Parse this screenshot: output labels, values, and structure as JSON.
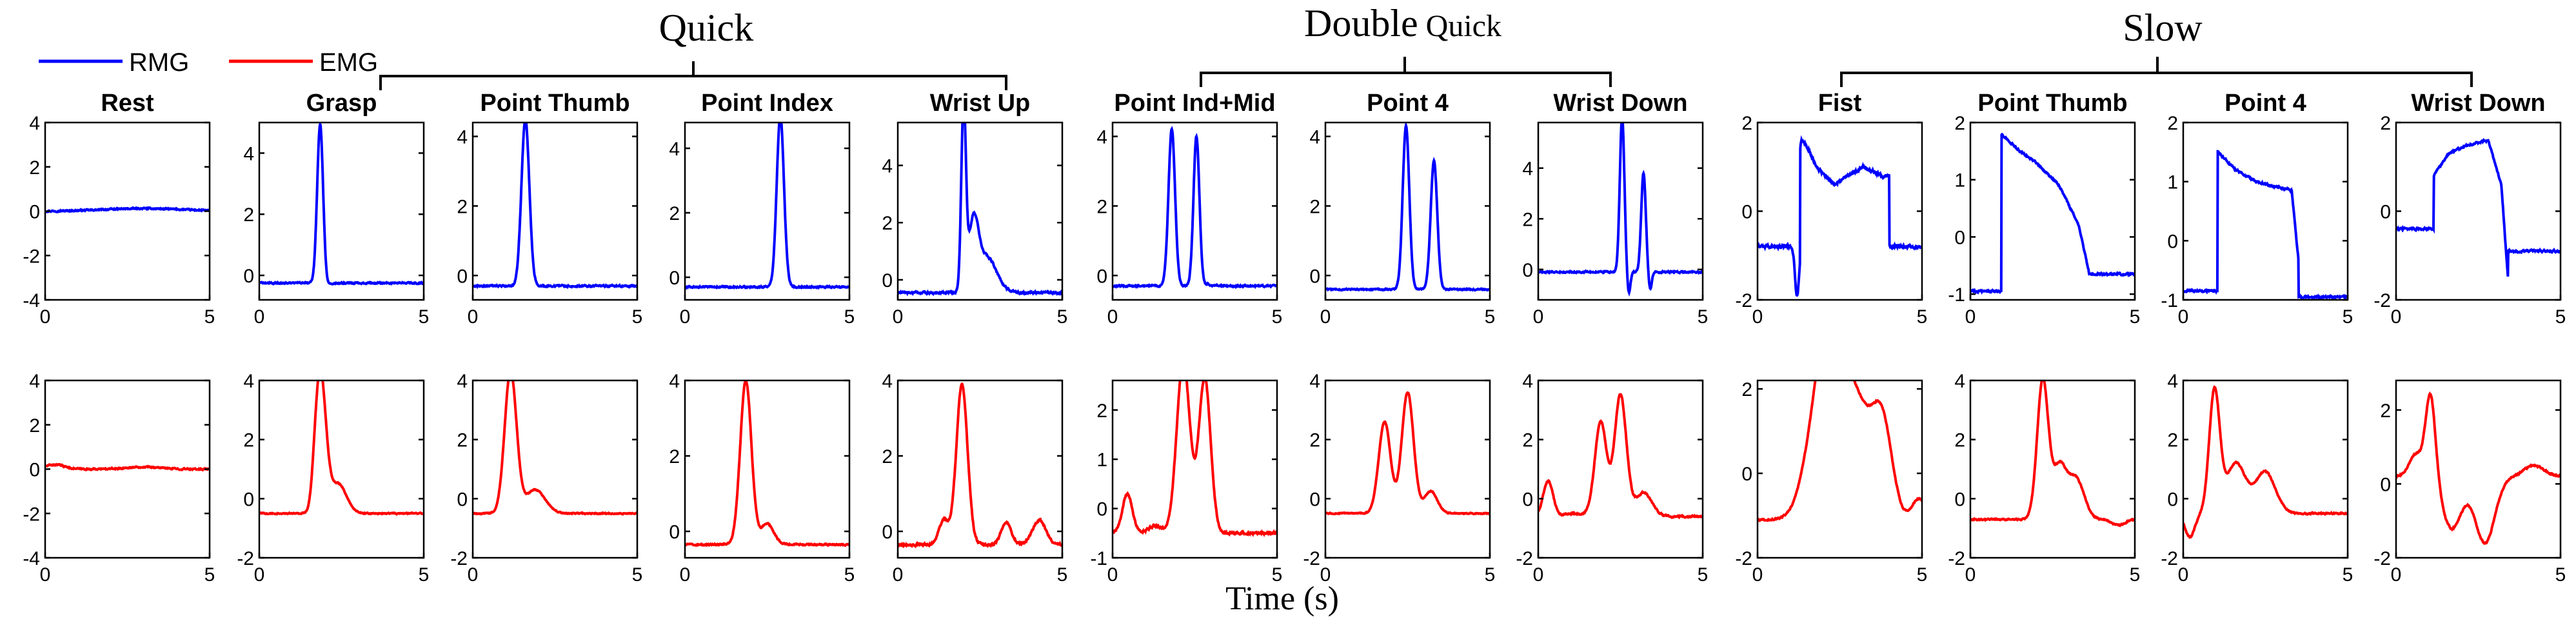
{
  "chart_data": {
    "type": "line",
    "xlabel": "Time (s)",
    "xlim": [
      0,
      5
    ],
    "xticks": [
      0,
      5
    ],
    "legend": {
      "placement": "top-left",
      "entries": [
        {
          "name": "RMG",
          "color": "#0000ff"
        },
        {
          "name": "EMG",
          "color": "#ff0000"
        }
      ]
    },
    "groups": [
      {
        "title": "Quick",
        "title_suffix": "",
        "panels": [
          "Grasp",
          "Point Thumb",
          "Point Index",
          "Wrist Up"
        ]
      },
      {
        "title": "Double",
        "title_suffix": "Quick",
        "panels": [
          "Point Ind+Mid",
          "Point 4",
          "Wrist Down"
        ]
      },
      {
        "title": "Slow",
        "title_suffix": "",
        "panels": [
          "Fist",
          "Point Thumb",
          "Point 4",
          "Wrist Down"
        ]
      }
    ],
    "panels": [
      {
        "title": "Rest",
        "rmg": {
          "ylim": [
            -4,
            4
          ],
          "yticks": [
            -4,
            -2,
            0,
            2,
            4
          ],
          "type": "flat",
          "base": 0.0,
          "noise": 0.05,
          "bumps": [
            [
              3.0,
              0.12,
              1.2
            ]
          ]
        },
        "emg": {
          "ylim": [
            -4,
            4
          ],
          "yticks": [
            -4,
            -2,
            0,
            2,
            4
          ],
          "type": "flat",
          "base": 0.0,
          "noise": 0.05,
          "bumps": [
            [
              0.3,
              0.2,
              0.3
            ],
            [
              3.0,
              0.1,
              0.5
            ]
          ]
        }
      },
      {
        "title": "Grasp",
        "rmg": {
          "ylim": [
            -0.8,
            5.0
          ],
          "yticks": [
            0,
            2,
            4
          ],
          "type": "peaks",
          "base": -0.25,
          "noise": 0.04,
          "peaks": [
            [
              1.85,
              4.95,
              0.09
            ]
          ],
          "dips": [
            [
              2.05,
              -0.35,
              0.06
            ]
          ]
        },
        "emg": {
          "ylim": [
            -2,
            4
          ],
          "yticks": [
            -2,
            0,
            2,
            4
          ],
          "type": "peaks",
          "base": -0.5,
          "noise": 0.03,
          "peaks": [
            [
              1.85,
              4.3,
              0.17
            ],
            [
              2.4,
              0.5,
              0.25
            ]
          ],
          "dips": [
            [
              1.55,
              -0.8,
              0.1
            ]
          ]
        }
      },
      {
        "title": "Point Thumb",
        "rmg": {
          "ylim": [
            -0.7,
            4.4
          ],
          "yticks": [
            0,
            2,
            4
          ],
          "type": "peaks",
          "base": -0.3,
          "noise": 0.04,
          "peaks": [
            [
              1.6,
              4.5,
              0.12
            ]
          ],
          "dips": []
        },
        "emg": {
          "ylim": [
            -2,
            4
          ],
          "yticks": [
            -2,
            0,
            2,
            4
          ],
          "type": "peaks",
          "base": -0.5,
          "noise": 0.03,
          "peaks": [
            [
              1.15,
              4.3,
              0.18
            ],
            [
              1.9,
              0.3,
              0.3
            ]
          ],
          "dips": []
        }
      },
      {
        "title": "Point Index",
        "rmg": {
          "ylim": [
            -0.7,
            4.8
          ],
          "yticks": [
            0,
            2,
            4
          ],
          "type": "peaks",
          "base": -0.3,
          "noise": 0.04,
          "peaks": [
            [
              2.9,
              5.0,
              0.11
            ]
          ],
          "dips": [
            [
              3.1,
              -0.25,
              0.06
            ]
          ]
        },
        "emg": {
          "ylim": [
            -0.7,
            4.0
          ],
          "yticks": [
            0,
            2,
            4
          ],
          "type": "peaks",
          "base": -0.35,
          "noise": 0.03,
          "peaks": [
            [
              1.85,
              4.0,
              0.17
            ],
            [
              2.5,
              0.2,
              0.2
            ]
          ],
          "dips": []
        }
      },
      {
        "title": "Wrist Up",
        "rmg": {
          "ylim": [
            -0.7,
            5.5
          ],
          "yticks": [
            0,
            2,
            4
          ],
          "type": "peaks",
          "base": -0.45,
          "noise": 0.06,
          "peaks": [
            [
              2.0,
              6.0,
              0.07
            ],
            [
              2.3,
              1.8,
              0.15
            ],
            [
              2.7,
              0.8,
              0.3
            ]
          ],
          "dips": []
        },
        "emg": {
          "ylim": [
            -0.7,
            4.0
          ],
          "yticks": [
            0,
            2,
            4
          ],
          "type": "peaks",
          "base": -0.35,
          "noise": 0.05,
          "peaks": [
            [
              1.95,
              3.9,
              0.17
            ],
            [
              1.4,
              0.3,
              0.15
            ],
            [
              3.3,
              0.25,
              0.15
            ],
            [
              4.3,
              0.3,
              0.2
            ]
          ],
          "dips": []
        }
      },
      {
        "title": "Point Ind+Mid",
        "rmg": {
          "ylim": [
            -0.7,
            4.4
          ],
          "yticks": [
            0,
            2,
            4
          ],
          "type": "peaks",
          "base": -0.3,
          "noise": 0.04,
          "peaks": [
            [
              1.8,
              4.2,
              0.1
            ],
            [
              2.55,
              4.0,
              0.09
            ]
          ],
          "dips": [
            [
              2.9,
              -0.25,
              0.06
            ]
          ]
        },
        "emg": {
          "ylim": [
            -1,
            2.6
          ],
          "yticks": [
            -1,
            0,
            1,
            2
          ],
          "type": "peaks",
          "base": -0.5,
          "noise": 0.04,
          "peaks": [
            [
              2.15,
              3.0,
              0.2
            ],
            [
              2.8,
              2.65,
              0.18
            ],
            [
              0.45,
              0.3,
              0.15
            ]
          ],
          "dips": [
            [
              1.3,
              -0.35,
              0.2
            ]
          ]
        }
      },
      {
        "title": "Point 4",
        "rmg": {
          "ylim": [
            -0.7,
            4.4
          ],
          "yticks": [
            0,
            2,
            4
          ],
          "type": "peaks",
          "base": -0.4,
          "noise": 0.03,
          "peaks": [
            [
              2.45,
              4.3,
              0.1
            ],
            [
              3.3,
              3.3,
              0.1
            ]
          ],
          "dips": []
        },
        "emg": {
          "ylim": [
            -2,
            4
          ],
          "yticks": [
            -2,
            0,
            2,
            4
          ],
          "type": "peaks",
          "base": -0.5,
          "noise": 0.03,
          "peaks": [
            [
              1.8,
              2.6,
              0.18
            ],
            [
              2.5,
              3.6,
              0.18
            ],
            [
              3.2,
              0.25,
              0.2
            ]
          ],
          "dips": []
        }
      },
      {
        "title": "Wrist Down",
        "rmg": {
          "ylim": [
            -1.2,
            5.8
          ],
          "yticks": [
            0,
            2,
            4
          ],
          "type": "peaks",
          "base": -0.1,
          "noise": 0.05,
          "peaks": [
            [
              2.55,
              6.0,
              0.07
            ],
            [
              3.2,
              3.8,
              0.07
            ]
          ],
          "dips": [
            [
              2.75,
              -1.0,
              0.05
            ],
            [
              3.4,
              -0.8,
              0.05
            ]
          ]
        },
        "emg": {
          "ylim": [
            -2,
            4
          ],
          "yticks": [
            -2,
            0,
            2,
            4
          ],
          "type": "peaks",
          "base": -0.6,
          "noise": 0.05,
          "peaks": [
            [
              0.3,
              0.6,
              0.15
            ],
            [
              1.9,
              2.6,
              0.18
            ],
            [
              2.5,
              3.5,
              0.18
            ],
            [
              3.2,
              0.2,
              0.25
            ]
          ],
          "dips": [
            [
              1.1,
              -0.5,
              0.3
            ]
          ]
        }
      },
      {
        "title": "Fist",
        "rmg": {
          "ylim": [
            -2,
            2
          ],
          "yticks": [
            -2,
            0,
            2
          ],
          "type": "plateau",
          "pre": -0.8,
          "start": 1.3,
          "end": 4.0,
          "shape": [
            [
              1.3,
              1.7
            ],
            [
              1.55,
              1.4
            ],
            [
              1.8,
              1.0
            ],
            [
              2.3,
              0.6
            ],
            [
              2.8,
              0.8
            ],
            [
              3.2,
              1.0
            ],
            [
              3.8,
              0.8
            ]
          ],
          "post": -0.8,
          "noise": 0.06,
          "predip": [
            [
              1.2,
              -1.9,
              0.06
            ]
          ]
        },
        "emg": {
          "ylim": [
            -2,
            2.2
          ],
          "yticks": [
            -2,
            0,
            2
          ],
          "type": "peaks",
          "base": -1.1,
          "noise": 0.03,
          "peaks": [
            [
              2.0,
              2.2,
              0.45
            ],
            [
              2.3,
              1.0,
              0.3
            ],
            [
              3.0,
              1.6,
              0.45
            ],
            [
              3.8,
              1.0,
              0.3
            ]
          ],
          "dips": [
            [
              4.9,
              -0.6,
              0.2
            ]
          ]
        }
      },
      {
        "title": "Point Thumb",
        "rmg": {
          "ylim": [
            -1.1,
            2.0
          ],
          "yticks": [
            -1,
            0,
            1,
            2
          ],
          "type": "plateau",
          "pre": -0.95,
          "start": 0.95,
          "end": 3.6,
          "shape": [
            [
              0.95,
              1.8
            ],
            [
              1.5,
              1.5
            ],
            [
              2.0,
              1.3
            ],
            [
              2.7,
              0.9
            ],
            [
              3.3,
              0.2
            ],
            [
              3.6,
              -0.6
            ]
          ],
          "post": -0.65,
          "noise": 0.03,
          "predip": []
        },
        "emg": {
          "ylim": [
            -2,
            4
          ],
          "yticks": [
            -2,
            0,
            2,
            4
          ],
          "type": "peaks",
          "base": -0.7,
          "noise": 0.04,
          "peaks": [
            [
              2.2,
              4.0,
              0.17
            ],
            [
              2.7,
              1.0,
              0.2
            ],
            [
              3.2,
              0.7,
              0.25
            ]
          ],
          "dips": [
            [
              4.5,
              -0.9,
              0.2
            ]
          ]
        }
      },
      {
        "title": "Point 4",
        "rmg": {
          "ylim": [
            -1.0,
            2.0
          ],
          "yticks": [
            -1,
            0,
            1,
            2
          ],
          "type": "plateau",
          "pre": -0.85,
          "start": 1.05,
          "end": 3.5,
          "shape": [
            [
              1.05,
              1.5
            ],
            [
              1.6,
              1.2
            ],
            [
              2.2,
              1.0
            ],
            [
              2.9,
              0.9
            ],
            [
              3.3,
              0.85
            ],
            [
              3.5,
              -0.3
            ]
          ],
          "post": -0.95,
          "noise": 0.03,
          "predip": []
        },
        "emg": {
          "ylim": [
            -2,
            4
          ],
          "yticks": [
            -2,
            0,
            2,
            4
          ],
          "type": "peaks",
          "base": -0.5,
          "noise": 0.04,
          "peaks": [
            [
              0.95,
              3.6,
              0.16
            ],
            [
              1.6,
              1.2,
              0.3
            ],
            [
              2.5,
              0.9,
              0.3
            ]
          ],
          "dips": [
            [
              0.2,
              -1.3,
              0.15
            ]
          ]
        }
      },
      {
        "title": "Wrist Down",
        "rmg": {
          "ylim": [
            -2,
            2
          ],
          "yticks": [
            -2,
            0,
            2
          ],
          "type": "plateau",
          "pre": -0.4,
          "start": 1.15,
          "end": 3.4,
          "shape": [
            [
              1.15,
              0.8
            ],
            [
              1.6,
              1.3
            ],
            [
              2.2,
              1.5
            ],
            [
              2.8,
              1.6
            ],
            [
              3.2,
              0.6
            ],
            [
              3.4,
              -1.5
            ]
          ],
          "post": -0.9,
          "noise": 0.04,
          "predip": []
        },
        "emg": {
          "ylim": [
            -2,
            2.8
          ],
          "yticks": [
            -2,
            0,
            2
          ],
          "type": "peaks",
          "base": 0.2,
          "noise": 0.04,
          "peaks": [
            [
              0.6,
              0.8,
              0.2
            ],
            [
              1.05,
              2.5,
              0.15
            ],
            [
              4.2,
              0.5,
              0.3
            ]
          ],
          "dips": [
            [
              1.7,
              -1.2,
              0.3
            ],
            [
              2.7,
              -1.6,
              0.3
            ]
          ]
        }
      }
    ]
  }
}
